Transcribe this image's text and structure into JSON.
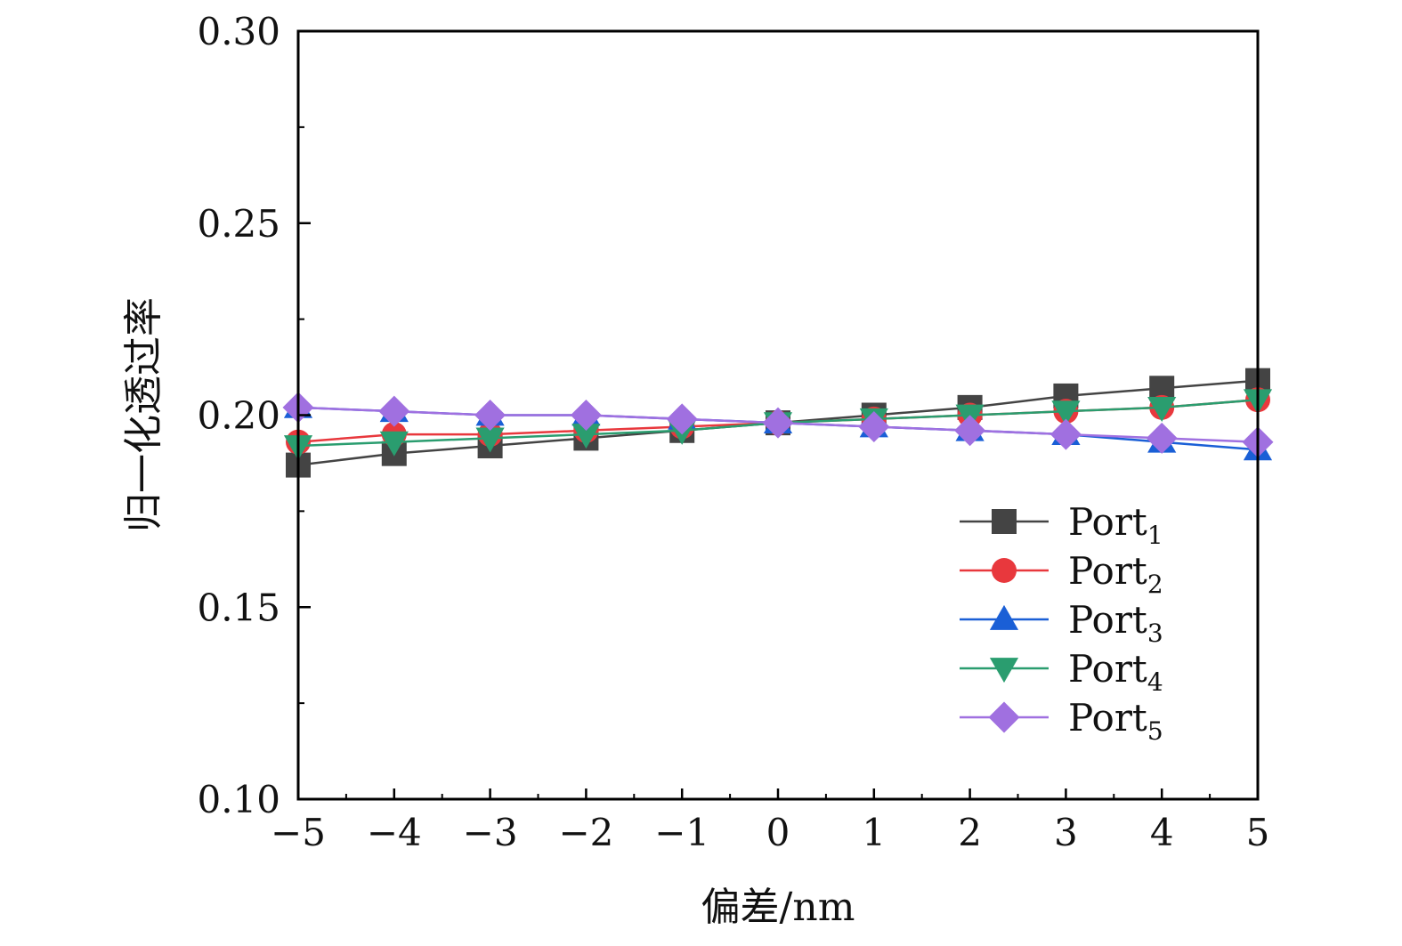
{
  "chart_data": {
    "type": "line",
    "title": "",
    "xlabel": "偏差/nm",
    "ylabel": "归一化透过率",
    "xlim": [
      -5,
      5
    ],
    "ylim": [
      0.1,
      0.3
    ],
    "x": [
      -5,
      -4,
      -3,
      -2,
      -1,
      0,
      1,
      2,
      3,
      4,
      5
    ],
    "x_tick_labels": [
      "−5",
      "−4",
      "−3",
      "−2",
      "−1",
      "0",
      "1",
      "2",
      "3",
      "4",
      "5"
    ],
    "y_ticks": [
      0.1,
      0.15,
      0.2,
      0.25,
      0.3
    ],
    "y_tick_labels": [
      "0.10",
      "0.15",
      "0.20",
      "0.25",
      "0.30"
    ],
    "grid": false,
    "legend_position": "lower-right",
    "series": [
      {
        "name": "Port",
        "subscript": "1",
        "color": "#444444",
        "marker": "square",
        "values": [
          0.187,
          0.19,
          0.192,
          0.194,
          0.196,
          0.198,
          0.2,
          0.202,
          0.205,
          0.207,
          0.209
        ]
      },
      {
        "name": "Port",
        "subscript": "2",
        "color": "#e8383d",
        "marker": "circle",
        "values": [
          0.193,
          0.195,
          0.195,
          0.196,
          0.197,
          0.198,
          0.199,
          0.2,
          0.201,
          0.202,
          0.204
        ]
      },
      {
        "name": "Port",
        "subscript": "3",
        "color": "#1a5fd6",
        "marker": "triangle-up",
        "values": [
          0.202,
          0.201,
          0.2,
          0.2,
          0.199,
          0.198,
          0.197,
          0.196,
          0.195,
          0.193,
          0.191
        ]
      },
      {
        "name": "Port",
        "subscript": "4",
        "color": "#2a9d6f",
        "marker": "triangle-down",
        "values": [
          0.192,
          0.193,
          0.194,
          0.195,
          0.196,
          0.198,
          0.199,
          0.2,
          0.201,
          0.202,
          0.204
        ]
      },
      {
        "name": "Port",
        "subscript": "5",
        "color": "#a070e0",
        "marker": "diamond",
        "values": [
          0.202,
          0.201,
          0.2,
          0.2,
          0.199,
          0.198,
          0.197,
          0.196,
          0.195,
          0.194,
          0.193
        ]
      }
    ]
  }
}
